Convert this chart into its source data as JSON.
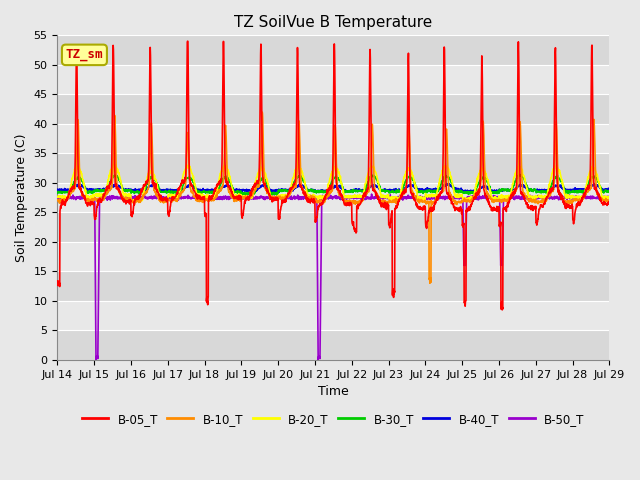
{
  "title": "TZ SoilVue B Temperature",
  "xlabel": "Time",
  "ylabel": "Soil Temperature (C)",
  "ylim": [
    0,
    55
  ],
  "yticks": [
    0,
    5,
    10,
    15,
    20,
    25,
    30,
    35,
    40,
    45,
    50,
    55
  ],
  "xtick_labels": [
    "Jul 14",
    "Jul 15",
    "Jul 16",
    "Jul 17",
    "Jul 18",
    "Jul 19",
    "Jul 20",
    "Jul 21",
    "Jul 22",
    "Jul 23",
    "Jul 24",
    "Jul 25",
    "Jul 26",
    "Jul 27",
    "Jul 28",
    "Jul 29"
  ],
  "series_colors": {
    "B-05_T": "#ff0000",
    "B-10_T": "#ff8c00",
    "B-20_T": "#ffff00",
    "B-30_T": "#00cc00",
    "B-40_T": "#0000dd",
    "B-50_T": "#9900cc"
  },
  "annotation_label": "TZ_sm",
  "annotation_color": "#cc0000",
  "annotation_bg": "#ffff99",
  "annotation_border": "#aaaa00",
  "plot_bg_color": "#e8e8e8",
  "fig_bg_color": "#e8e8e8",
  "grid_color": "#ffffff",
  "linewidth": 1.2,
  "title_fontsize": 11,
  "axis_fontsize": 9,
  "tick_fontsize": 8
}
